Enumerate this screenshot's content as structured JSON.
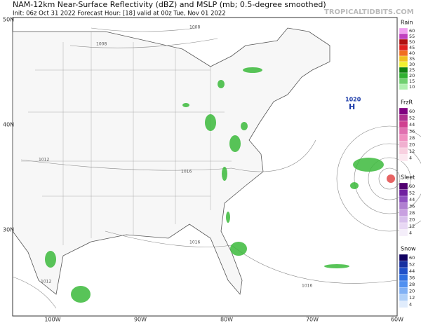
{
  "header": {
    "title": "NAM-12km Near-Surface Reflectivity (dBZ) and MSLP (mb; 0.5-degree smoothed)",
    "subtitle": "Init: 06z Oct 31 2022   Forecast Hour: [18]   valid at 00z Tue, Nov 01 2022",
    "brand": "TROPICALTIDBITS.COM"
  },
  "axes": {
    "lat": [
      "50N",
      "40N",
      "30N"
    ],
    "lon": [
      "100W",
      "90W",
      "80W",
      "70W",
      "60W"
    ]
  },
  "isobars": [
    "1008",
    "1008",
    "1012",
    "1016",
    "1016",
    "1016",
    "1012"
  ],
  "high": {
    "value": "1020",
    "symbol": "H"
  },
  "legends": [
    {
      "title": "Rain",
      "ticks": [
        "60",
        "55",
        "50",
        "45",
        "40",
        "35",
        "30",
        "25",
        "20",
        "15",
        "10"
      ]
    },
    {
      "title": "FrzR",
      "ticks": [
        "60",
        "52",
        "44",
        "36",
        "28",
        "20",
        "12",
        "4"
      ]
    },
    {
      "title": "Sleet",
      "ticks": [
        "60",
        "52",
        "44",
        "36",
        "28",
        "20",
        "12",
        "4"
      ]
    },
    {
      "title": "Snow",
      "ticks": [
        "60",
        "52",
        "44",
        "36",
        "28",
        "20",
        "12",
        "4"
      ]
    }
  ]
}
